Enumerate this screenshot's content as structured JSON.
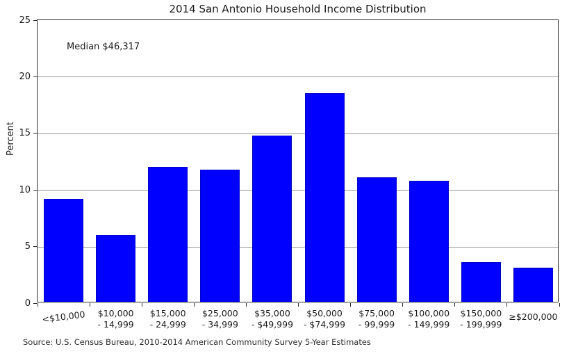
{
  "title": "2014 San Antonio Household Income Distribution",
  "source": "Source: U.S. Census Bureau, 2010-2014 American Community Survey 5-Year Estimates",
  "chart_data": {
    "type": "bar",
    "title": "2014 San Antonio Household Income Distribution",
    "xlabel": "",
    "ylabel": "Percent",
    "annotation": "Median $46,317",
    "categories": [
      "<$10,000",
      "$10,000 - 14,999",
      "$15,000 - 24,999",
      "$25,000 - 34,999",
      "$35,000 - $49,999",
      "$50,000 - $74,999",
      "$75,000 - 99,999",
      "$100,000 - 149,999",
      "$150,000 - 199,999",
      "≥$200,000"
    ],
    "category_label_lines": [
      [
        "<$10,000"
      ],
      [
        "$10,000",
        "- 14,999"
      ],
      [
        "$15,000",
        "- 24,999"
      ],
      [
        "$25,000",
        "- 34,999"
      ],
      [
        "$35,000",
        "- $49,999"
      ],
      [
        "$50,000",
        "- $74,999"
      ],
      [
        "$75,000",
        "- 99,999"
      ],
      [
        "$100,000",
        "- 149,999"
      ],
      [
        "$150,000",
        "- 199,999"
      ],
      [
        "≥$200,000"
      ]
    ],
    "values": [
      9.1,
      5.9,
      11.9,
      11.7,
      14.7,
      18.4,
      11.0,
      10.7,
      3.5,
      3.0
    ],
    "ylim": [
      0,
      25
    ],
    "yticks": [
      0,
      5,
      10,
      15,
      20,
      25
    ],
    "grid": true,
    "legend": "none",
    "bar_color": "#0000ff",
    "grid_color": "#959595"
  }
}
